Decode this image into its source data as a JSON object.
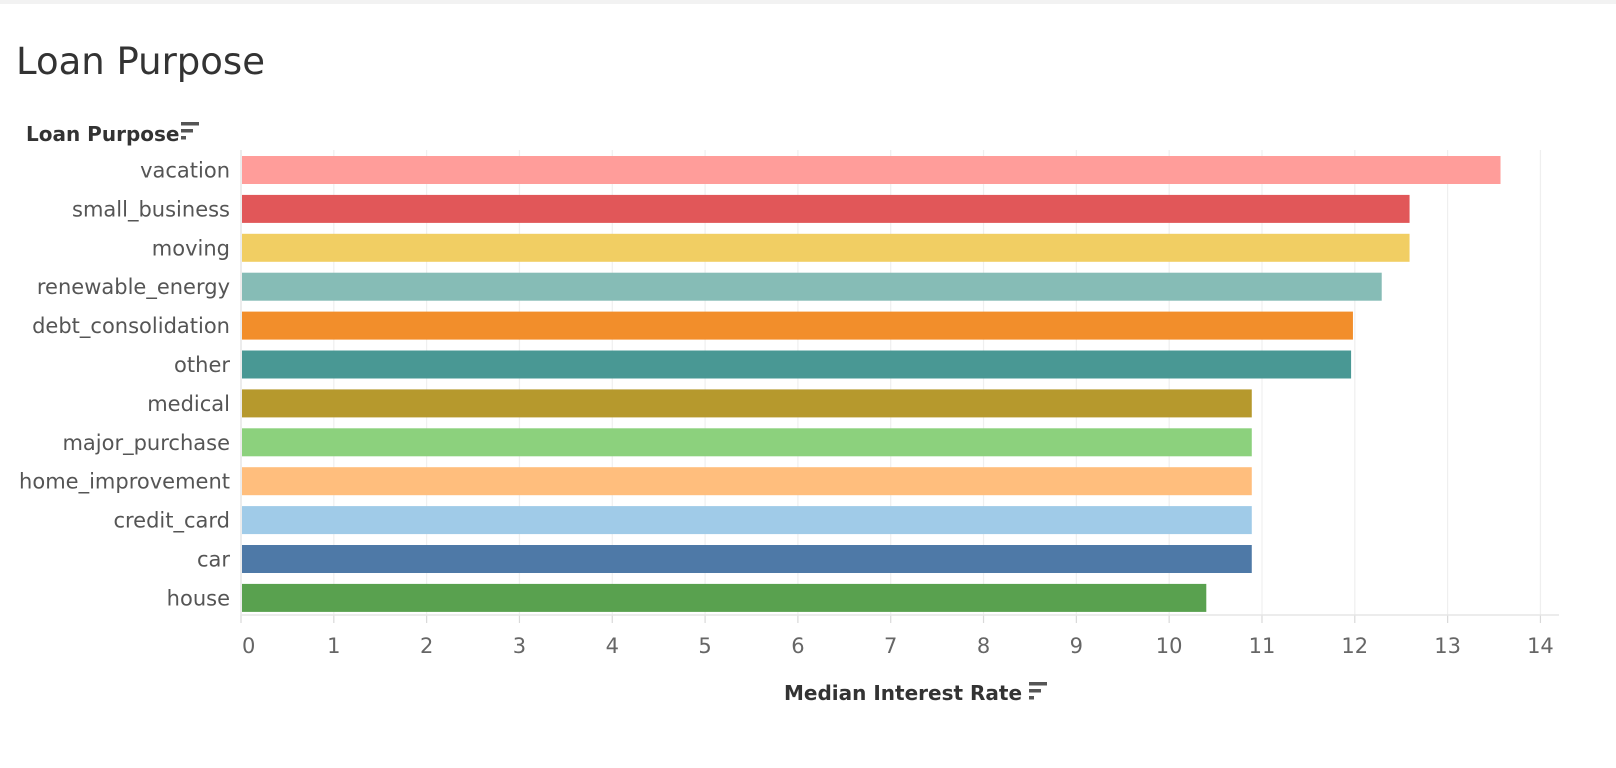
{
  "title": "Loan Purpose",
  "chart_data": {
    "type": "bar",
    "orientation": "horizontal",
    "ylabel": "Loan Purpose",
    "xlabel": "Median Interest Rate",
    "xlim": [
      0,
      14.2
    ],
    "xticks": [
      0,
      1,
      2,
      3,
      4,
      5,
      6,
      7,
      8,
      9,
      10,
      11,
      12,
      13,
      14
    ],
    "grid": true,
    "categories": [
      "vacation",
      "small_business",
      "moving",
      "renewable_energy",
      "debt_consolidation",
      "other",
      "medical",
      "major_purchase",
      "home_improvement",
      "credit_card",
      "car",
      "house"
    ],
    "values": [
      13.57,
      12.59,
      12.59,
      12.29,
      11.98,
      11.96,
      10.89,
      10.89,
      10.89,
      10.89,
      10.89,
      10.4
    ],
    "colors": [
      "#ff9d9a",
      "#e15759",
      "#f1ce63",
      "#86bcb6",
      "#f28e2b",
      "#499894",
      "#b6992d",
      "#8cd17d",
      "#ffbe7d",
      "#a0cbe8",
      "#4e79a7",
      "#59a14f"
    ],
    "sort_icon": "sort-descending-icon"
  }
}
